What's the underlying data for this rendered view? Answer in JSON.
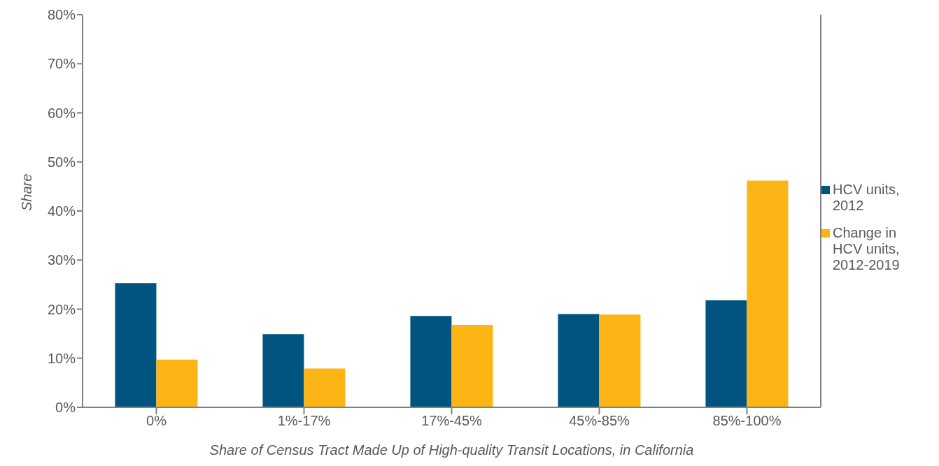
{
  "chart_data": {
    "type": "bar",
    "xlabel": "Share of Census Tract Made Up of High-quality Transit Locations, in California",
    "ylabel": "Share",
    "categories": [
      "0%",
      "1%-17%",
      "17%-45%",
      "45%-85%",
      "85%-100%"
    ],
    "series": [
      {
        "name": "HCV units, 2012",
        "color": "#01547f",
        "values": [
          25.3,
          14.9,
          18.6,
          19.0,
          21.8
        ]
      },
      {
        "name": "Change in HCV units, 2012-2019",
        "color": "#fdb515",
        "values": [
          9.7,
          7.9,
          16.8,
          18.9,
          46.2
        ]
      }
    ],
    "ylim": [
      0,
      80
    ],
    "yticks": [
      {
        "value": 0,
        "label": "0%"
      },
      {
        "value": 10,
        "label": "10%"
      },
      {
        "value": 20,
        "label": "20%"
      },
      {
        "value": 30,
        "label": "30%"
      },
      {
        "value": 40,
        "label": "40%"
      },
      {
        "value": 50,
        "label": "50%"
      },
      {
        "value": 60,
        "label": "60%"
      },
      {
        "value": 70,
        "label": "70%"
      },
      {
        "value": 80,
        "label": "80%"
      }
    ],
    "grid": false,
    "legend": "right"
  }
}
